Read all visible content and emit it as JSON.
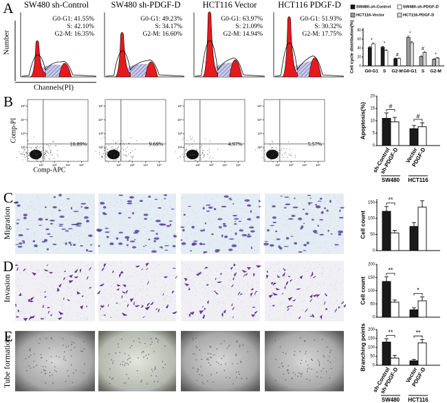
{
  "panel_letters": [
    "A",
    "B",
    "C",
    "D",
    "E"
  ],
  "row_labels": [
    "Migration",
    "Invasion",
    "Tube formation"
  ],
  "cell_cycle": {
    "y_label": "Number",
    "x_label": "Channels(PI)",
    "titles": [
      "SW480 sh-Control",
      "SW480 sh-PDGF-D",
      "HCT116 Vector",
      "HCT116 PDGF-D"
    ],
    "stats": [
      [
        "G0-G1: 41.55%",
        "S: 42.10%",
        "G2-M: 16.35%"
      ],
      [
        "G0-G1: 49.23%",
        "S: 34.17%",
        "G2-M: 16.60%"
      ],
      [
        "G0-G1: 63.97%",
        "S: 21.09%",
        "G2-M: 14.94%"
      ],
      [
        "G0-G1: 51.93%",
        "S: 30.32%",
        "G2-M: 17.75%"
      ]
    ]
  },
  "cell_cycle_chart": {
    "y_label": "Cell cycle distribution(%)",
    "ylim": [
      0,
      80
    ],
    "yticks": [
      0,
      20,
      40,
      60,
      80
    ],
    "categories": [
      "G0-G1",
      "S",
      "G2-M",
      "G0-G1",
      "S",
      "G2-M"
    ],
    "significance": [
      "*",
      "*",
      "#",
      "*",
      "#",
      "*"
    ],
    "series": [
      {
        "name": "SW480-sh-Control",
        "color": "#1a1a1a",
        "values": [
          41.55,
          42.1,
          16.35,
          null,
          null,
          null
        ],
        "errors": [
          2,
          2,
          1.5,
          null,
          null,
          null
        ]
      },
      {
        "name": "SW480-sh-PDGF-D",
        "color": "#ffffff",
        "values": [
          49.23,
          34.17,
          16.6,
          null,
          null,
          null
        ],
        "errors": [
          2,
          2,
          1.5,
          null,
          null,
          null
        ]
      },
      {
        "name": "HCT116-Vector",
        "color": "#9a9a9a",
        "values": [
          null,
          null,
          null,
          63.97,
          21.09,
          14.94
        ],
        "errors": [
          null,
          null,
          null,
          3,
          2,
          1.5
        ]
      },
      {
        "name": "HCT116-PDGF-D",
        "color": "#d4d4d4",
        "values": [
          null,
          null,
          null,
          51.93,
          30.32,
          17.75
        ],
        "errors": [
          null,
          null,
          null,
          3,
          2,
          1.5
        ]
      }
    ]
  },
  "apoptosis": {
    "y_label": "Comp-PI",
    "x_label": "Comp-APC",
    "labels": [
      "10.89%",
      "9.69%",
      "4.97%",
      "5.57%"
    ],
    "lim": [
      10,
      300000
    ],
    "ticks": [
      {
        "value": 100,
        "label": "10²"
      },
      {
        "value": 1000,
        "label": "10³"
      },
      {
        "value": 10000,
        "label": "10⁴"
      },
      {
        "value": 100000,
        "label": "10⁵"
      }
    ]
  },
  "apoptosis_chart": {
    "y_label": "Apoptosis(%)",
    "ylim": [
      0,
      20
    ],
    "yticks": [
      0,
      5,
      10,
      15,
      20
    ],
    "categories": [
      "sh-Control",
      "sh-PDGF-D",
      "Vector",
      "PDGF-D"
    ],
    "groups": [
      "SW480",
      "HCT116"
    ],
    "values": [
      11,
      9.6,
      6.8,
      7.6
    ],
    "errors": [
      2.2,
      1.8,
      1.3,
      1.6
    ],
    "colors": [
      "#1a1a1a",
      "#ffffff",
      "#1a1a1a",
      "#ffffff"
    ],
    "significance": [
      "#",
      "#"
    ]
  },
  "migration_chart": {
    "y_label": "Cell count",
    "ylim": [
      0,
      160
    ],
    "yticks": [
      0,
      50,
      100,
      150
    ],
    "values": [
      122,
      55,
      75,
      135
    ],
    "errors": [
      15,
      8,
      12,
      20
    ],
    "colors": [
      "#1a1a1a",
      "#ffffff",
      "#1a1a1a",
      "#ffffff"
    ],
    "significance": [
      "**"
    ]
  },
  "invasion_chart": {
    "y_label": "Cell count",
    "ylim": [
      0,
      200
    ],
    "yticks": [
      0,
      50,
      100,
      150,
      200
    ],
    "values": [
      135,
      57,
      28,
      62
    ],
    "errors": [
      18,
      8,
      8,
      15
    ],
    "colors": [
      "#1a1a1a",
      "#ffffff",
      "#1a1a1a",
      "#ffffff"
    ],
    "significance": [
      "**",
      "*"
    ]
  },
  "tube_chart": {
    "y_label": "Branching points",
    "ylim": [
      0,
      200
    ],
    "yticks": [
      0,
      50,
      100,
      150,
      200
    ],
    "categories": [
      "sh-Control",
      "sh-PDGF-D",
      "Vector",
      "PDGF-D"
    ],
    "groups": [
      "SW480",
      "HCT116"
    ],
    "values": [
      130,
      40,
      25,
      125
    ],
    "errors": [
      18,
      15,
      8,
      20
    ],
    "colors": [
      "#1a1a1a",
      "#ffffff",
      "#1a1a1a",
      "#ffffff"
    ],
    "significance": [
      "**",
      "**"
    ]
  }
}
